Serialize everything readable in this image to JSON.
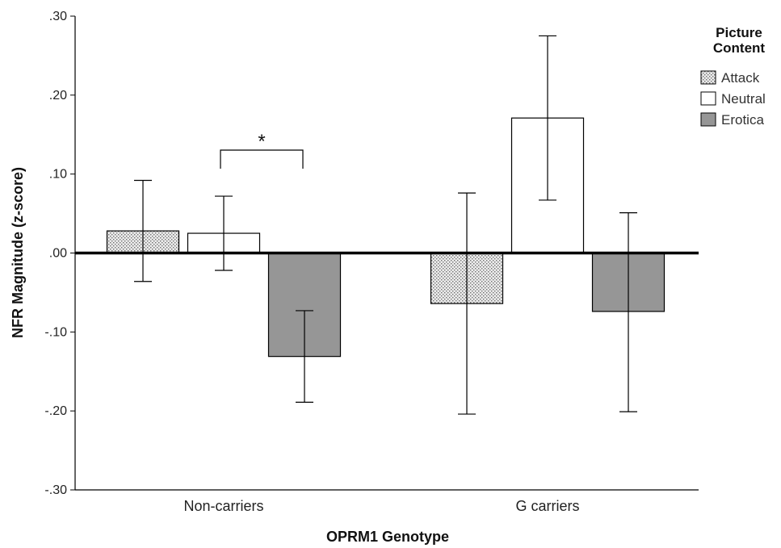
{
  "chart_data": {
    "type": "bar",
    "xlabel": "OPRM1 Genotype",
    "ylabel": "NFR Magnitude (z-score)",
    "ylim": [
      -0.3,
      0.3
    ],
    "yticks": [
      0.3,
      0.2,
      0.1,
      0.0,
      -0.1,
      -0.2,
      -0.3
    ],
    "ytick_labels": [
      ".30",
      ".20",
      ".10",
      ".00",
      "-.10",
      "-.20",
      "-.30"
    ],
    "categories": [
      "Non-carriers",
      "G carriers"
    ],
    "legend": {
      "title_lines": [
        "Picture",
        "Content"
      ],
      "placement": "top-right"
    },
    "series": [
      {
        "name": "Attack",
        "pattern": "dotted",
        "color": "#bdbdbd",
        "values": [
          0.028,
          -0.064
        ],
        "error_low": [
          -0.036,
          -0.204
        ],
        "error_high": [
          0.092,
          0.076
        ]
      },
      {
        "name": "Neutral",
        "pattern": "solid",
        "color": "#ffffff",
        "values": [
          0.025,
          0.171
        ],
        "error_low": [
          -0.022,
          0.067
        ],
        "error_high": [
          0.072,
          0.275
        ]
      },
      {
        "name": "Erotica",
        "pattern": "solid",
        "color": "#969696",
        "values": [
          -0.131,
          -0.074
        ],
        "error_low": [
          -0.189,
          -0.201
        ],
        "error_high": [
          -0.073,
          0.051
        ]
      }
    ],
    "annotations": [
      {
        "text": "*",
        "category": 0,
        "from_series": 1,
        "to_series": 2
      }
    ]
  }
}
